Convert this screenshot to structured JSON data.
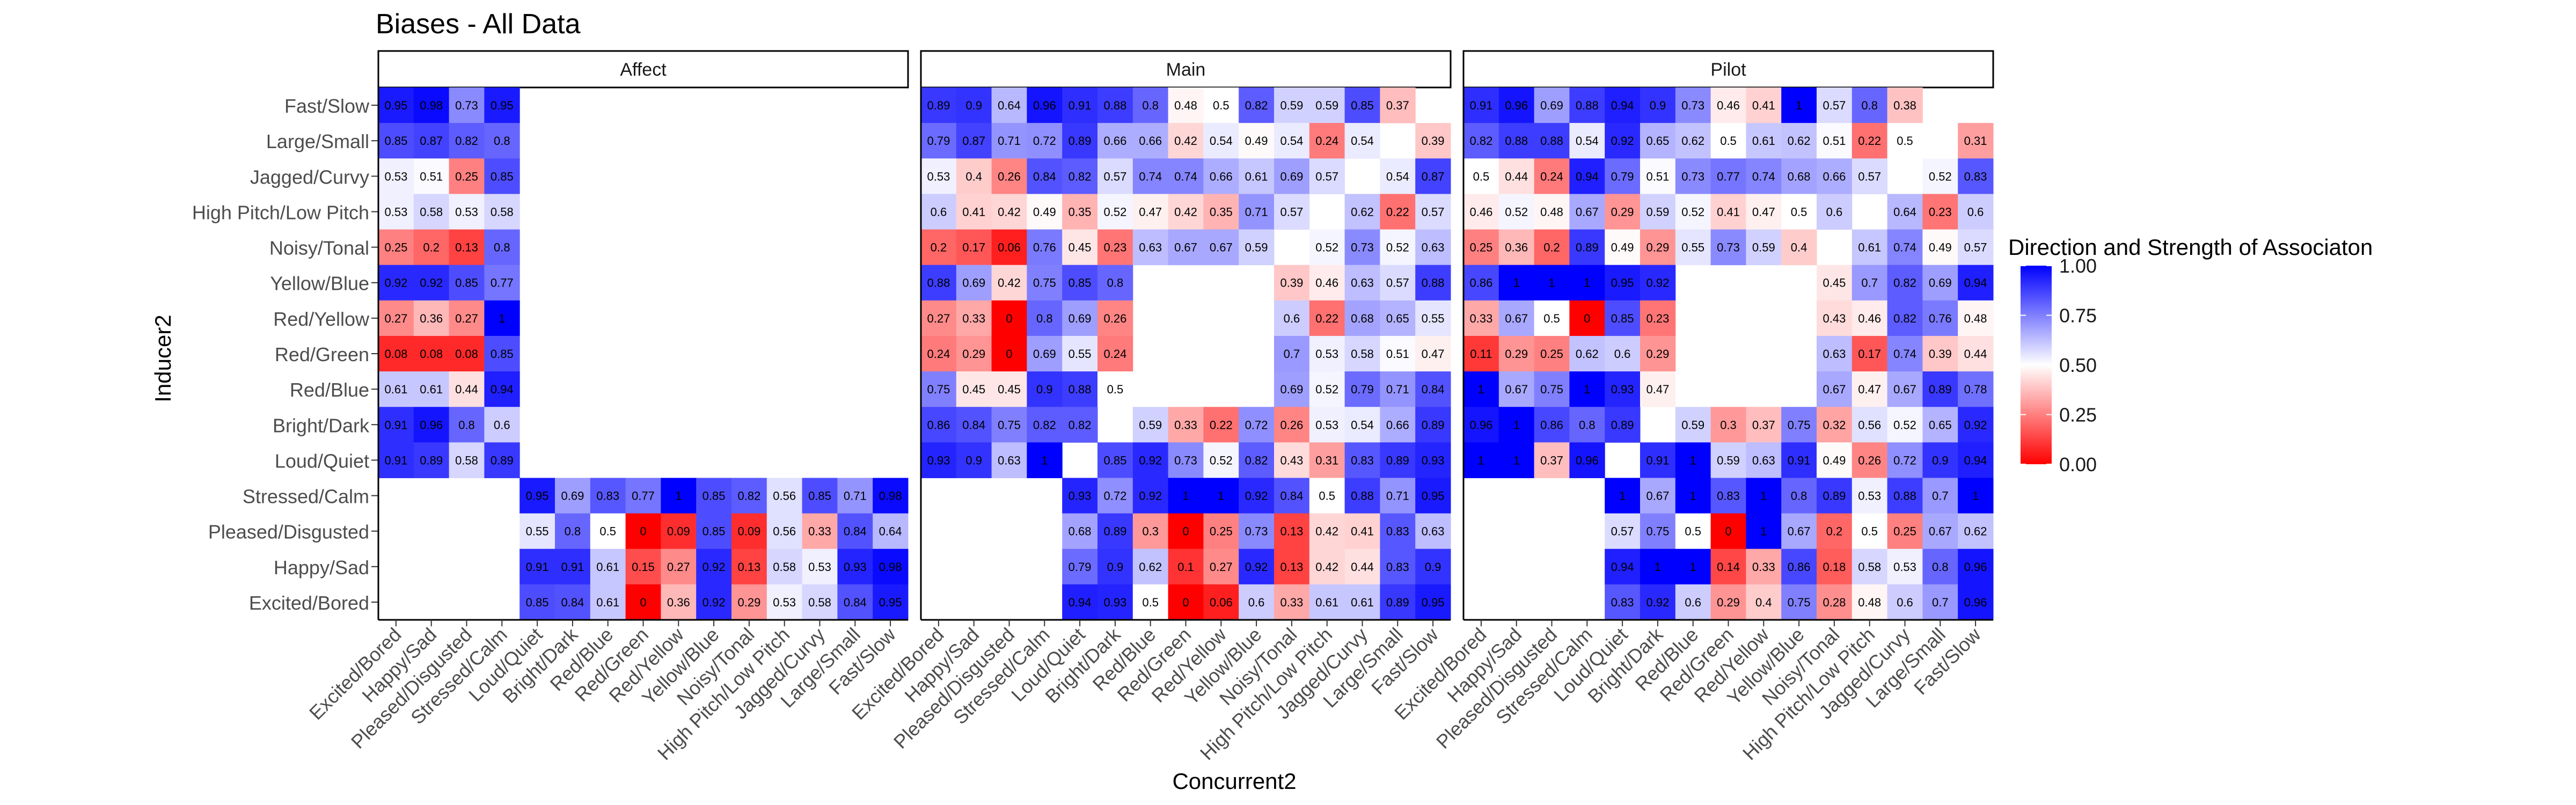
{
  "chart_data": {
    "type": "heatmap",
    "title": "Biases - All Data",
    "xlabel": "Concurrent2",
    "ylabel": "Inducer2",
    "legend": {
      "title": "Direction and Strength of Associaton",
      "ticks": [
        "0.00",
        "0.25",
        "0.50",
        "0.75",
        "1.00"
      ],
      "tick_values": [
        0,
        0.25,
        0.5,
        0.75,
        1
      ],
      "low_color": "#ff0000",
      "mid_color": "#ffffff",
      "high_color": "#0000ff",
      "placement": "right"
    },
    "rows": [
      "Fast/Slow",
      "Large/Small",
      "Jagged/Curvy",
      "High Pitch/Low Pitch",
      "Noisy/Tonal",
      "Yellow/Blue",
      "Red/Yellow",
      "Red/Green",
      "Red/Blue",
      "Bright/Dark",
      "Loud/Quiet",
      "Stressed/Calm",
      "Pleased/Disgusted",
      "Happy/Sad",
      "Excited/Bored"
    ],
    "columns": [
      "Excited/Bored",
      "Happy/Sad",
      "Pleased/Disgusted",
      "Stressed/Calm",
      "Loud/Quiet",
      "Bright/Dark",
      "Red/Blue",
      "Red/Green",
      "Red/Yellow",
      "Yellow/Blue",
      "Noisy/Tonal",
      "High Pitch/Low Pitch",
      "Jagged/Curvy",
      "Large/Small",
      "Fast/Slow"
    ],
    "panels": [
      {
        "name": "Affect",
        "values": [
          [
            0.95,
            0.98,
            0.73,
            0.95,
            null,
            null,
            null,
            null,
            null,
            null,
            null,
            null,
            null,
            null,
            null
          ],
          [
            0.85,
            0.87,
            0.82,
            0.8,
            null,
            null,
            null,
            null,
            null,
            null,
            null,
            null,
            null,
            null,
            null
          ],
          [
            0.53,
            0.51,
            0.25,
            0.85,
            null,
            null,
            null,
            null,
            null,
            null,
            null,
            null,
            null,
            null,
            null
          ],
          [
            0.53,
            0.58,
            0.53,
            0.58,
            null,
            null,
            null,
            null,
            null,
            null,
            null,
            null,
            null,
            null,
            null
          ],
          [
            0.25,
            0.2,
            0.13,
            0.8,
            null,
            null,
            null,
            null,
            null,
            null,
            null,
            null,
            null,
            null,
            null
          ],
          [
            0.92,
            0.92,
            0.85,
            0.77,
            null,
            null,
            null,
            null,
            null,
            null,
            null,
            null,
            null,
            null,
            null
          ],
          [
            0.27,
            0.36,
            0.27,
            1,
            null,
            null,
            null,
            null,
            null,
            null,
            null,
            null,
            null,
            null,
            null
          ],
          [
            0.08,
            0.08,
            0.08,
            0.85,
            null,
            null,
            null,
            null,
            null,
            null,
            null,
            null,
            null,
            null,
            null
          ],
          [
            0.61,
            0.61,
            0.44,
            0.94,
            null,
            null,
            null,
            null,
            null,
            null,
            null,
            null,
            null,
            null,
            null
          ],
          [
            0.91,
            0.96,
            0.8,
            0.6,
            null,
            null,
            null,
            null,
            null,
            null,
            null,
            null,
            null,
            null,
            null
          ],
          [
            0.91,
            0.89,
            0.58,
            0.89,
            null,
            null,
            null,
            null,
            null,
            null,
            null,
            null,
            null,
            null,
            null
          ],
          [
            null,
            null,
            null,
            null,
            0.95,
            0.69,
            0.83,
            0.77,
            1,
            0.85,
            0.82,
            0.56,
            0.85,
            0.71,
            0.98
          ],
          [
            null,
            null,
            null,
            null,
            0.55,
            0.8,
            0.5,
            0,
            0.09,
            0.85,
            0.09,
            0.56,
            0.33,
            0.84,
            0.64
          ],
          [
            null,
            null,
            null,
            null,
            0.91,
            0.91,
            0.61,
            0.15,
            0.27,
            0.92,
            0.13,
            0.58,
            0.53,
            0.93,
            0.98
          ],
          [
            null,
            null,
            null,
            null,
            0.85,
            0.84,
            0.61,
            0,
            0.36,
            0.92,
            0.29,
            0.53,
            0.58,
            0.84,
            0.95
          ]
        ]
      },
      {
        "name": "Main",
        "values": [
          [
            0.89,
            0.9,
            0.64,
            0.96,
            0.91,
            0.88,
            0.8,
            0.48,
            0.5,
            0.82,
            0.59,
            0.59,
            0.85,
            0.37,
            null
          ],
          [
            0.79,
            0.87,
            0.71,
            0.72,
            0.89,
            0.66,
            0.66,
            0.42,
            0.54,
            0.49,
            0.54,
            0.24,
            0.54,
            null,
            0.39
          ],
          [
            0.53,
            0.4,
            0.26,
            0.84,
            0.82,
            0.57,
            0.74,
            0.74,
            0.66,
            0.61,
            0.69,
            0.57,
            null,
            0.54,
            0.87
          ],
          [
            0.6,
            0.41,
            0.42,
            0.49,
            0.35,
            0.52,
            0.47,
            0.42,
            0.35,
            0.71,
            0.57,
            null,
            0.62,
            0.22,
            0.57
          ],
          [
            0.2,
            0.17,
            0.06,
            0.76,
            0.45,
            0.23,
            0.63,
            0.67,
            0.67,
            0.59,
            null,
            0.52,
            0.73,
            0.52,
            0.63
          ],
          [
            0.88,
            0.69,
            0.42,
            0.75,
            0.85,
            0.8,
            null,
            null,
            null,
            null,
            0.39,
            0.46,
            0.63,
            0.57,
            0.88
          ],
          [
            0.27,
            0.33,
            0,
            0.8,
            0.69,
            0.26,
            null,
            null,
            null,
            null,
            0.6,
            0.22,
            0.68,
            0.65,
            0.55
          ],
          [
            0.24,
            0.29,
            0,
            0.69,
            0.55,
            0.24,
            null,
            null,
            null,
            null,
            0.7,
            0.53,
            0.58,
            0.51,
            0.47
          ],
          [
            0.75,
            0.45,
            0.45,
            0.9,
            0.88,
            0.5,
            null,
            null,
            null,
            null,
            0.69,
            0.52,
            0.79,
            0.71,
            0.84
          ],
          [
            0.86,
            0.84,
            0.75,
            0.82,
            0.82,
            null,
            0.59,
            0.33,
            0.22,
            0.72,
            0.26,
            0.53,
            0.54,
            0.66,
            0.89
          ],
          [
            0.93,
            0.9,
            0.63,
            1,
            null,
            0.85,
            0.92,
            0.73,
            0.52,
            0.82,
            0.43,
            0.31,
            0.83,
            0.89,
            0.93
          ],
          [
            null,
            null,
            null,
            null,
            0.93,
            0.72,
            0.92,
            1,
            1,
            0.92,
            0.84,
            0.5,
            0.88,
            0.71,
            0.95
          ],
          [
            null,
            null,
            null,
            null,
            0.68,
            0.89,
            0.3,
            0,
            0.25,
            0.73,
            0.13,
            0.42,
            0.41,
            0.83,
            0.63
          ],
          [
            null,
            null,
            null,
            null,
            0.79,
            0.9,
            0.62,
            0.1,
            0.27,
            0.92,
            0.13,
            0.42,
            0.44,
            0.83,
            0.9
          ],
          [
            null,
            null,
            null,
            null,
            0.94,
            0.93,
            0.5,
            0,
            0.06,
            0.6,
            0.33,
            0.61,
            0.61,
            0.89,
            0.95
          ]
        ]
      },
      {
        "name": "Pilot",
        "values": [
          [
            0.91,
            0.96,
            0.69,
            0.88,
            0.94,
            0.9,
            0.73,
            0.46,
            0.41,
            1,
            0.57,
            0.8,
            0.38,
            null,
            null
          ],
          [
            0.82,
            0.88,
            0.88,
            0.54,
            0.92,
            0.65,
            0.62,
            0.5,
            0.61,
            0.62,
            0.51,
            0.22,
            0.5,
            null,
            0.31
          ],
          [
            0.5,
            0.44,
            0.24,
            0.94,
            0.79,
            0.51,
            0.73,
            0.77,
            0.74,
            0.68,
            0.66,
            0.57,
            null,
            0.52,
            0.83
          ],
          [
            0.46,
            0.52,
            0.48,
            0.67,
            0.29,
            0.59,
            0.52,
            0.41,
            0.47,
            0.5,
            0.6,
            null,
            0.64,
            0.23,
            0.6
          ],
          [
            0.25,
            0.36,
            0.2,
            0.89,
            0.49,
            0.29,
            0.55,
            0.73,
            0.59,
            0.4,
            null,
            0.61,
            0.74,
            0.49,
            0.57
          ],
          [
            0.86,
            1,
            1,
            1,
            0.95,
            0.92,
            null,
            null,
            null,
            null,
            0.45,
            0.7,
            0.82,
            0.69,
            0.94
          ],
          [
            0.33,
            0.67,
            0.5,
            0,
            0.85,
            0.23,
            null,
            null,
            null,
            null,
            0.43,
            0.46,
            0.82,
            0.76,
            0.48
          ],
          [
            0.11,
            0.29,
            0.25,
            0.62,
            0.6,
            0.29,
            null,
            null,
            null,
            null,
            0.63,
            0.17,
            0.74,
            0.39,
            0.44
          ],
          [
            1,
            0.67,
            0.75,
            1,
            0.93,
            0.47,
            null,
            null,
            null,
            null,
            0.67,
            0.47,
            0.67,
            0.89,
            0.78
          ],
          [
            0.96,
            1,
            0.86,
            0.8,
            0.89,
            null,
            0.59,
            0.3,
            0.37,
            0.75,
            0.32,
            0.56,
            0.52,
            0.65,
            0.92
          ],
          [
            1,
            1,
            0.37,
            0.96,
            null,
            0.91,
            1,
            0.59,
            0.63,
            0.91,
            0.49,
            0.26,
            0.72,
            0.9,
            0.94
          ],
          [
            null,
            null,
            null,
            null,
            1,
            0.67,
            1,
            0.83,
            1,
            0.8,
            0.89,
            0.53,
            0.88,
            0.7,
            1
          ],
          [
            null,
            null,
            null,
            null,
            0.57,
            0.75,
            0.5,
            0,
            1,
            0.67,
            0.2,
            0.5,
            0.25,
            0.67,
            0.62
          ],
          [
            null,
            null,
            null,
            null,
            0.94,
            1,
            1,
            0.14,
            0.33,
            0.86,
            0.18,
            0.58,
            0.53,
            0.8,
            0.96
          ],
          [
            null,
            null,
            null,
            null,
            0.83,
            0.92,
            0.6,
            0.29,
            0.4,
            0.75,
            0.28,
            0.48,
            0.6,
            0.7,
            0.96
          ]
        ]
      }
    ]
  }
}
